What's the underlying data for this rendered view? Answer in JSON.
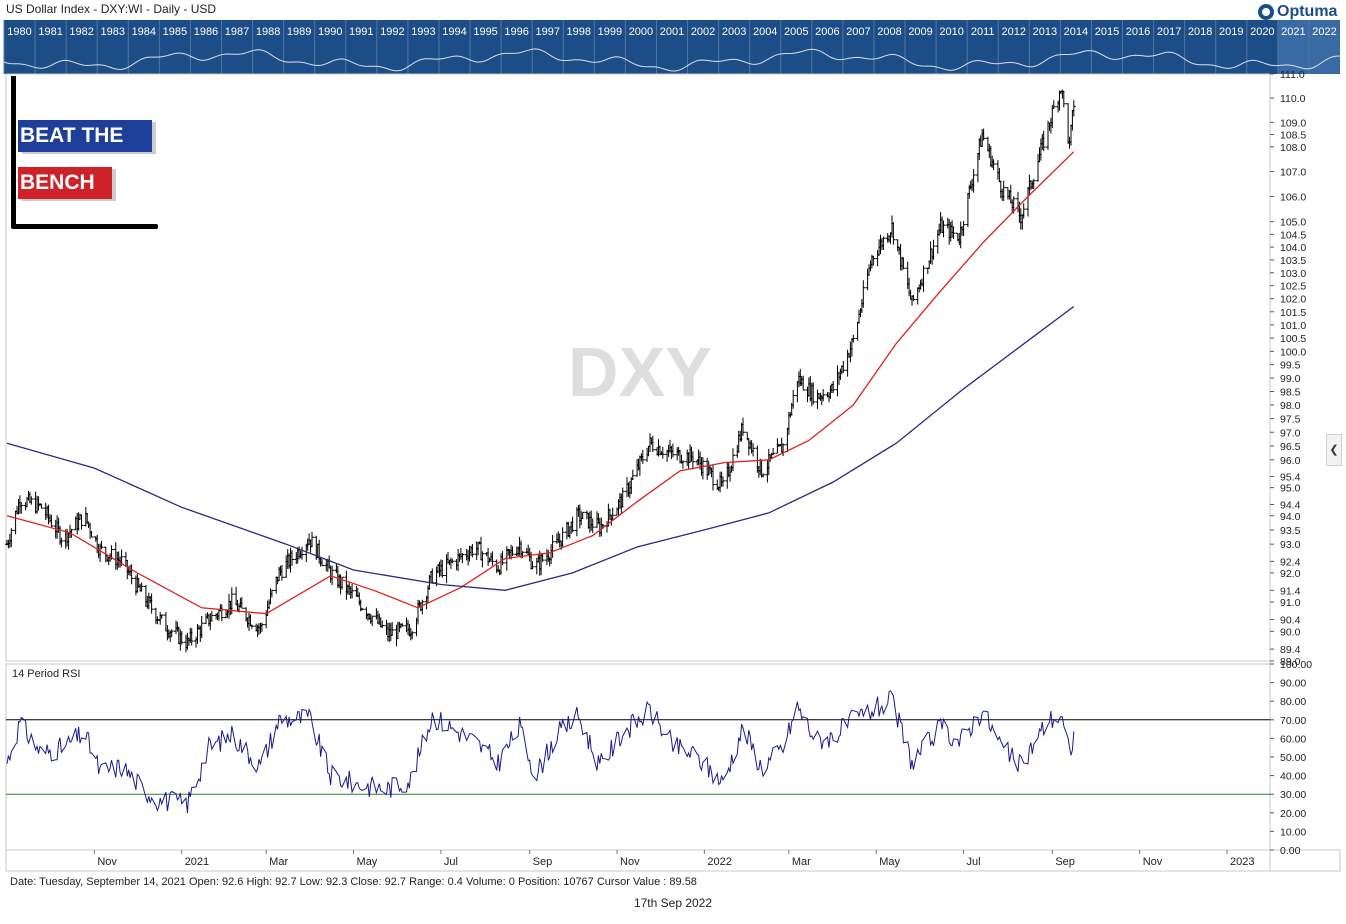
{
  "header": {
    "title": "US Dollar Index - DXY:WI - Daily - USD",
    "logo_text": "Optuma"
  },
  "navigator": {
    "years": [
      "1980",
      "1981",
      "1982",
      "1983",
      "1984",
      "1985",
      "1986",
      "1987",
      "1988",
      "1989",
      "1990",
      "1991",
      "1992",
      "1993",
      "1994",
      "1995",
      "1996",
      "1997",
      "1998",
      "1999",
      "2000",
      "2001",
      "2002",
      "2003",
      "2004",
      "2005",
      "2006",
      "2007",
      "2008",
      "2009",
      "2010",
      "2011",
      "2012",
      "2013",
      "2014",
      "2015",
      "2016",
      "2017",
      "2018",
      "2019",
      "2020",
      "2021",
      "2022"
    ],
    "selected_range": [
      "2021",
      "2022"
    ]
  },
  "branding": {
    "line1": "BEAT THE",
    "line2": "BENCH",
    "line1_color": "#1d3f9a",
    "line2_color": "#cc2228"
  },
  "watermark": "DXY",
  "rsi_label": "14 Period RSI",
  "status_bar": "Date: Tuesday, September 14, 2021 Open: 92.6 High: 92.7 Low: 92.3 Close: 92.7 Range: 0.4 Volume: 0 Position: 10767 Cursor Value : 89.58",
  "footer": "17th Sep 2022",
  "colors": {
    "navigator_bg": "#1d4d86",
    "ma_fast": "#e02020",
    "ma_slow": "#2a2a80",
    "rsi_line": "#1a1a8c",
    "rsi_upper": "#000000",
    "rsi_lower": "#2e7d32"
  },
  "chart_data": [
    {
      "type": "ohlc",
      "title": "US Dollar Index - DXY:WI - Daily - USD",
      "x_tick_labels": [
        "Nov",
        "2021",
        "Mar",
        "May",
        "Jul",
        "Sep",
        "Nov",
        "2022",
        "Mar",
        "May",
        "Jul",
        "Sep",
        "Nov",
        "2023"
      ],
      "x_range": [
        "2020-09-01",
        "2023-01-31"
      ],
      "y_tick_labels": [
        "89.0",
        "89.4",
        "90.0",
        "90.4",
        "91.0",
        "91.4",
        "92.0",
        "92.4",
        "93.0",
        "93.5",
        "94.0",
        "94.4",
        "95.0",
        "95.4",
        "96.0",
        "96.5",
        "97.0",
        "97.5",
        "98.0",
        "98.5",
        "99.0",
        "99.5",
        "100.0",
        "100.5",
        "101.0",
        "101.5",
        "102.0",
        "102.5",
        "103.0",
        "103.5",
        "104.0",
        "104.5",
        "105.0",
        "106.0",
        "107.0",
        "108.0",
        "108.5",
        "109.0",
        "110.0",
        "111.0"
      ],
      "ylim": [
        89.0,
        111.0
      ],
      "y_scale": "log",
      "close_path": [
        {
          "date": "2020-09-01",
          "close": 93.0
        },
        {
          "date": "2020-09-10",
          "close": 94.6
        },
        {
          "date": "2020-09-25",
          "close": 94.3
        },
        {
          "date": "2020-10-10",
          "close": 93.2
        },
        {
          "date": "2020-10-25",
          "close": 94.0
        },
        {
          "date": "2020-11-05",
          "close": 92.8
        },
        {
          "date": "2020-11-20",
          "close": 92.4
        },
        {
          "date": "2020-12-05",
          "close": 91.2
        },
        {
          "date": "2020-12-20",
          "close": 90.2
        },
        {
          "date": "2021-01-05",
          "close": 89.6
        },
        {
          "date": "2021-01-20",
          "close": 90.4
        },
        {
          "date": "2021-02-05",
          "close": 91.0
        },
        {
          "date": "2021-02-25",
          "close": 90.1
        },
        {
          "date": "2021-03-10",
          "close": 92.0
        },
        {
          "date": "2021-03-31",
          "close": 93.2
        },
        {
          "date": "2021-04-15",
          "close": 92.0
        },
        {
          "date": "2021-05-05",
          "close": 91.0
        },
        {
          "date": "2021-05-25",
          "close": 89.9
        },
        {
          "date": "2021-06-10",
          "close": 90.1
        },
        {
          "date": "2021-06-25",
          "close": 91.9
        },
        {
          "date": "2021-07-10",
          "close": 92.4
        },
        {
          "date": "2021-07-25",
          "close": 92.9
        },
        {
          "date": "2021-08-10",
          "close": 92.2
        },
        {
          "date": "2021-08-25",
          "close": 93.0
        },
        {
          "date": "2021-09-05",
          "close": 92.2
        },
        {
          "date": "2021-09-20",
          "close": 93.0
        },
        {
          "date": "2021-10-05",
          "close": 94.0
        },
        {
          "date": "2021-10-20",
          "close": 93.6
        },
        {
          "date": "2021-11-05",
          "close": 94.6
        },
        {
          "date": "2021-11-24",
          "close": 96.6
        },
        {
          "date": "2021-12-10",
          "close": 96.2
        },
        {
          "date": "2021-12-25",
          "close": 96.1
        },
        {
          "date": "2022-01-14",
          "close": 95.0
        },
        {
          "date": "2022-01-28",
          "close": 97.2
        },
        {
          "date": "2022-02-10",
          "close": 95.6
        },
        {
          "date": "2022-02-25",
          "close": 96.5
        },
        {
          "date": "2022-03-07",
          "close": 99.0
        },
        {
          "date": "2022-03-20",
          "close": 98.3
        },
        {
          "date": "2022-04-01",
          "close": 98.6
        },
        {
          "date": "2022-04-15",
          "close": 100.4
        },
        {
          "date": "2022-04-28",
          "close": 103.6
        },
        {
          "date": "2022-05-12",
          "close": 104.8
        },
        {
          "date": "2022-05-26",
          "close": 101.8
        },
        {
          "date": "2022-06-15",
          "close": 104.8
        },
        {
          "date": "2022-06-28",
          "close": 104.4
        },
        {
          "date": "2022-07-14",
          "close": 108.5
        },
        {
          "date": "2022-07-28",
          "close": 106.3
        },
        {
          "date": "2022-08-10",
          "close": 105.2
        },
        {
          "date": "2022-08-29",
          "close": 108.8
        },
        {
          "date": "2022-09-07",
          "close": 110.5
        },
        {
          "date": "2022-09-13",
          "close": 108.0
        },
        {
          "date": "2022-09-16",
          "close": 109.8
        }
      ],
      "overlays": [
        {
          "name": "",
          "color": "#e02020",
          "values": [
            {
              "date": "2020-09-01",
              "value": 94.0
            },
            {
              "date": "2020-10-15",
              "value": 93.4
            },
            {
              "date": "2020-12-01",
              "value": 92.0
            },
            {
              "date": "2021-01-15",
              "value": 90.8
            },
            {
              "date": "2021-03-01",
              "value": 90.6
            },
            {
              "date": "2021-04-15",
              "value": 91.9
            },
            {
              "date": "2021-05-15",
              "value": 91.4
            },
            {
              "date": "2021-06-15",
              "value": 90.8
            },
            {
              "date": "2021-07-15",
              "value": 91.5
            },
            {
              "date": "2021-08-15",
              "value": 92.5
            },
            {
              "date": "2021-09-15",
              "value": 92.7
            },
            {
              "date": "2021-10-15",
              "value": 93.3
            },
            {
              "date": "2021-11-15",
              "value": 94.5
            },
            {
              "date": "2021-12-15",
              "value": 95.6
            },
            {
              "date": "2022-01-15",
              "value": 95.9
            },
            {
              "date": "2022-02-15",
              "value": 96.0
            },
            {
              "date": "2022-03-15",
              "value": 96.7
            },
            {
              "date": "2022-04-15",
              "value": 98.0
            },
            {
              "date": "2022-05-15",
              "value": 100.3
            },
            {
              "date": "2022-06-15",
              "value": 102.3
            },
            {
              "date": "2022-07-15",
              "value": 104.2
            },
            {
              "date": "2022-08-15",
              "value": 106.0
            },
            {
              "date": "2022-09-16",
              "value": 107.8
            }
          ]
        },
        {
          "name": "",
          "color": "#2a2a80",
          "values": [
            {
              "date": "2020-09-01",
              "value": 96.6
            },
            {
              "date": "2020-11-01",
              "value": 95.7
            },
            {
              "date": "2021-01-01",
              "value": 94.3
            },
            {
              "date": "2021-03-15",
              "value": 93.0
            },
            {
              "date": "2021-05-01",
              "value": 92.1
            },
            {
              "date": "2021-07-01",
              "value": 91.6
            },
            {
              "date": "2021-08-15",
              "value": 91.4
            },
            {
              "date": "2021-10-01",
              "value": 92.0
            },
            {
              "date": "2021-11-15",
              "value": 92.9
            },
            {
              "date": "2022-01-01",
              "value": 93.5
            },
            {
              "date": "2022-02-15",
              "value": 94.1
            },
            {
              "date": "2022-04-01",
              "value": 95.2
            },
            {
              "date": "2022-05-15",
              "value": 96.6
            },
            {
              "date": "2022-07-01",
              "value": 98.6
            },
            {
              "date": "2022-08-15",
              "value": 100.4
            },
            {
              "date": "2022-09-16",
              "value": 101.7
            }
          ]
        }
      ]
    },
    {
      "type": "line",
      "title": "14 Period RSI",
      "y_tick_labels": [
        "0.00",
        "10.00",
        "20.00",
        "30.00",
        "40.00",
        "50.00",
        "60.00",
        "70.00",
        "80.00",
        "90.00",
        "100.00"
      ],
      "ylim": [
        0,
        100
      ],
      "reference_lines": [
        70,
        30
      ],
      "series": [
        {
          "name": "",
          "values": [
            {
              "date": "2020-09-01",
              "value": 47
            },
            {
              "date": "2020-09-10",
              "value": 68
            },
            {
              "date": "2020-09-25",
              "value": 52
            },
            {
              "date": "2020-10-10",
              "value": 55
            },
            {
              "date": "2020-10-25",
              "value": 63
            },
            {
              "date": "2020-11-05",
              "value": 42
            },
            {
              "date": "2020-11-20",
              "value": 45
            },
            {
              "date": "2020-12-05",
              "value": 33
            },
            {
              "date": "2020-12-15",
              "value": 27
            },
            {
              "date": "2021-01-05",
              "value": 25
            },
            {
              "date": "2021-01-20",
              "value": 55
            },
            {
              "date": "2021-02-05",
              "value": 62
            },
            {
              "date": "2021-02-25",
              "value": 45
            },
            {
              "date": "2021-03-10",
              "value": 70
            },
            {
              "date": "2021-03-31",
              "value": 71
            },
            {
              "date": "2021-04-15",
              "value": 40
            },
            {
              "date": "2021-05-05",
              "value": 35
            },
            {
              "date": "2021-05-25",
              "value": 33
            },
            {
              "date": "2021-06-10",
              "value": 38
            },
            {
              "date": "2021-06-25",
              "value": 72
            },
            {
              "date": "2021-07-10",
              "value": 65
            },
            {
              "date": "2021-07-25",
              "value": 58
            },
            {
              "date": "2021-08-10",
              "value": 47
            },
            {
              "date": "2021-08-25",
              "value": 66
            },
            {
              "date": "2021-09-05",
              "value": 40
            },
            {
              "date": "2021-09-20",
              "value": 62
            },
            {
              "date": "2021-10-05",
              "value": 72
            },
            {
              "date": "2021-10-20",
              "value": 45
            },
            {
              "date": "2021-11-05",
              "value": 63
            },
            {
              "date": "2021-11-24",
              "value": 75
            },
            {
              "date": "2021-12-10",
              "value": 56
            },
            {
              "date": "2021-12-25",
              "value": 51
            },
            {
              "date": "2022-01-14",
              "value": 36
            },
            {
              "date": "2022-01-28",
              "value": 66
            },
            {
              "date": "2022-02-10",
              "value": 44
            },
            {
              "date": "2022-02-25",
              "value": 55
            },
            {
              "date": "2022-03-07",
              "value": 77
            },
            {
              "date": "2022-03-20",
              "value": 59
            },
            {
              "date": "2022-04-01",
              "value": 61
            },
            {
              "date": "2022-04-15",
              "value": 70
            },
            {
              "date": "2022-04-28",
              "value": 75
            },
            {
              "date": "2022-05-12",
              "value": 80
            },
            {
              "date": "2022-05-26",
              "value": 47
            },
            {
              "date": "2022-06-15",
              "value": 66
            },
            {
              "date": "2022-06-28",
              "value": 58
            },
            {
              "date": "2022-07-14",
              "value": 75
            },
            {
              "date": "2022-07-28",
              "value": 55
            },
            {
              "date": "2022-08-10",
              "value": 45
            },
            {
              "date": "2022-08-29",
              "value": 70
            },
            {
              "date": "2022-09-07",
              "value": 72
            },
            {
              "date": "2022-09-13",
              "value": 52
            },
            {
              "date": "2022-09-16",
              "value": 61
            }
          ]
        }
      ]
    }
  ]
}
